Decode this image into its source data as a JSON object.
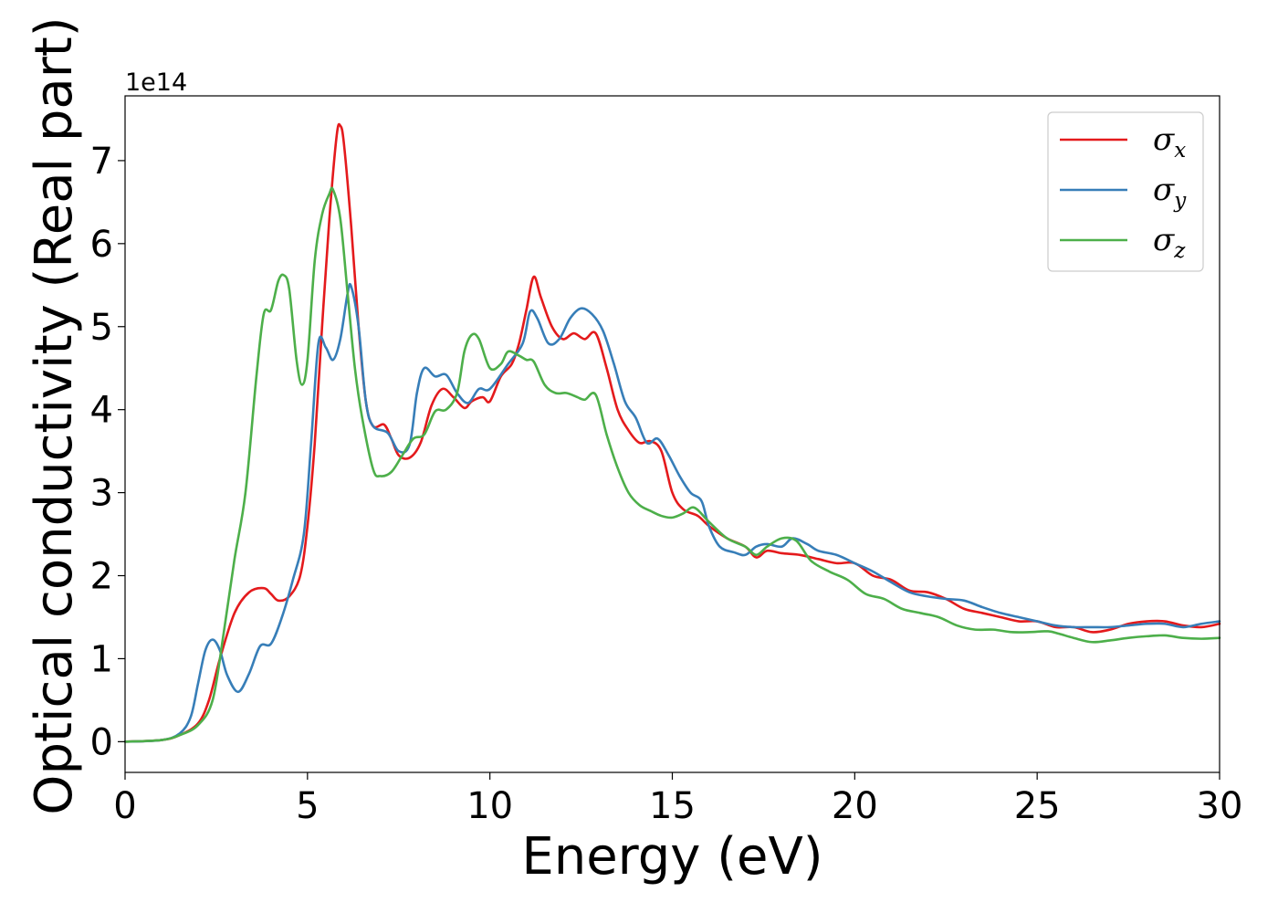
{
  "chart_data": {
    "type": "line",
    "xlabel": "Energy (eV)",
    "ylabel": "Optical conductivity (Real part)",
    "y_offset_label": "1e14",
    "y_multiplier": 100000000000000.0,
    "xlim": [
      0,
      30
    ],
    "ylim": [
      -0.37,
      7.78
    ],
    "xticks": [
      0,
      5,
      10,
      15,
      20,
      25,
      30
    ],
    "yticks": [
      0,
      1,
      2,
      3,
      4,
      5,
      6,
      7
    ],
    "grid": false,
    "legend_position": "top-right",
    "series": [
      {
        "name": "σx",
        "symbol": "σ",
        "subscript": "x",
        "color": "#e41a1c",
        "points": [
          [
            0,
            0
          ],
          [
            1,
            0.02
          ],
          [
            1.5,
            0.08
          ],
          [
            2,
            0.22
          ],
          [
            2.3,
            0.5
          ],
          [
            2.6,
            1.0
          ],
          [
            3.0,
            1.55
          ],
          [
            3.4,
            1.8
          ],
          [
            3.8,
            1.85
          ],
          [
            4.0,
            1.78
          ],
          [
            4.2,
            1.7
          ],
          [
            4.5,
            1.75
          ],
          [
            4.8,
            2.0
          ],
          [
            5.0,
            2.6
          ],
          [
            5.2,
            3.6
          ],
          [
            5.4,
            5.0
          ],
          [
            5.6,
            6.3
          ],
          [
            5.8,
            7.3
          ],
          [
            5.9,
            7.42
          ],
          [
            6.0,
            7.2
          ],
          [
            6.2,
            6.2
          ],
          [
            6.4,
            5.0
          ],
          [
            6.6,
            4.1
          ],
          [
            6.8,
            3.8
          ],
          [
            7.1,
            3.82
          ],
          [
            7.3,
            3.65
          ],
          [
            7.5,
            3.45
          ],
          [
            7.8,
            3.42
          ],
          [
            8.1,
            3.6
          ],
          [
            8.4,
            4.05
          ],
          [
            8.7,
            4.25
          ],
          [
            9.0,
            4.15
          ],
          [
            9.3,
            4.02
          ],
          [
            9.5,
            4.1
          ],
          [
            9.8,
            4.15
          ],
          [
            10.0,
            4.1
          ],
          [
            10.3,
            4.4
          ],
          [
            10.6,
            4.55
          ],
          [
            10.8,
            4.8
          ],
          [
            11.0,
            5.2
          ],
          [
            11.2,
            5.6
          ],
          [
            11.4,
            5.35
          ],
          [
            11.7,
            5.0
          ],
          [
            12.0,
            4.85
          ],
          [
            12.3,
            4.92
          ],
          [
            12.6,
            4.85
          ],
          [
            12.9,
            4.92
          ],
          [
            13.2,
            4.5
          ],
          [
            13.5,
            4.0
          ],
          [
            13.8,
            3.75
          ],
          [
            14.1,
            3.6
          ],
          [
            14.4,
            3.62
          ],
          [
            14.7,
            3.5
          ],
          [
            15.0,
            3.0
          ],
          [
            15.3,
            2.8
          ],
          [
            15.7,
            2.72
          ],
          [
            16.0,
            2.6
          ],
          [
            16.5,
            2.45
          ],
          [
            17.0,
            2.35
          ],
          [
            17.3,
            2.22
          ],
          [
            17.6,
            2.3
          ],
          [
            18.0,
            2.27
          ],
          [
            18.5,
            2.25
          ],
          [
            19.0,
            2.2
          ],
          [
            19.5,
            2.15
          ],
          [
            20.0,
            2.15
          ],
          [
            20.5,
            2.0
          ],
          [
            21.0,
            1.95
          ],
          [
            21.5,
            1.82
          ],
          [
            22.0,
            1.8
          ],
          [
            22.5,
            1.72
          ],
          [
            23.0,
            1.6
          ],
          [
            23.5,
            1.55
          ],
          [
            24.0,
            1.5
          ],
          [
            24.5,
            1.45
          ],
          [
            25.0,
            1.45
          ],
          [
            25.5,
            1.38
          ],
          [
            26.0,
            1.38
          ],
          [
            26.5,
            1.32
          ],
          [
            27.0,
            1.35
          ],
          [
            27.5,
            1.42
          ],
          [
            28.0,
            1.45
          ],
          [
            28.5,
            1.45
          ],
          [
            29.0,
            1.4
          ],
          [
            29.5,
            1.38
          ],
          [
            30.0,
            1.42
          ]
        ]
      },
      {
        "name": "σy",
        "symbol": "σ",
        "subscript": "y",
        "color": "#377eb8",
        "points": [
          [
            0,
            0
          ],
          [
            1,
            0.02
          ],
          [
            1.5,
            0.1
          ],
          [
            1.8,
            0.3
          ],
          [
            2.0,
            0.7
          ],
          [
            2.2,
            1.1
          ],
          [
            2.4,
            1.23
          ],
          [
            2.6,
            1.1
          ],
          [
            2.8,
            0.8
          ],
          [
            3.1,
            0.6
          ],
          [
            3.4,
            0.82
          ],
          [
            3.7,
            1.15
          ],
          [
            4.0,
            1.18
          ],
          [
            4.3,
            1.5
          ],
          [
            4.6,
            1.95
          ],
          [
            4.9,
            2.5
          ],
          [
            5.1,
            3.6
          ],
          [
            5.3,
            4.8
          ],
          [
            5.5,
            4.75
          ],
          [
            5.7,
            4.6
          ],
          [
            5.9,
            4.85
          ],
          [
            6.1,
            5.4
          ],
          [
            6.2,
            5.48
          ],
          [
            6.4,
            5.0
          ],
          [
            6.6,
            4.1
          ],
          [
            6.8,
            3.8
          ],
          [
            7.2,
            3.72
          ],
          [
            7.5,
            3.5
          ],
          [
            7.8,
            3.58
          ],
          [
            8.0,
            4.2
          ],
          [
            8.2,
            4.5
          ],
          [
            8.5,
            4.4
          ],
          [
            8.8,
            4.42
          ],
          [
            9.1,
            4.2
          ],
          [
            9.4,
            4.08
          ],
          [
            9.7,
            4.25
          ],
          [
            10.0,
            4.25
          ],
          [
            10.5,
            4.55
          ],
          [
            10.9,
            4.8
          ],
          [
            11.1,
            5.18
          ],
          [
            11.3,
            5.1
          ],
          [
            11.6,
            4.8
          ],
          [
            11.9,
            4.85
          ],
          [
            12.2,
            5.1
          ],
          [
            12.5,
            5.22
          ],
          [
            12.8,
            5.15
          ],
          [
            13.1,
            4.95
          ],
          [
            13.4,
            4.55
          ],
          [
            13.7,
            4.1
          ],
          [
            14.0,
            3.9
          ],
          [
            14.3,
            3.6
          ],
          [
            14.6,
            3.65
          ],
          [
            14.9,
            3.45
          ],
          [
            15.2,
            3.2
          ],
          [
            15.5,
            3.0
          ],
          [
            15.8,
            2.9
          ],
          [
            16.0,
            2.6
          ],
          [
            16.3,
            2.35
          ],
          [
            16.7,
            2.28
          ],
          [
            17.0,
            2.25
          ],
          [
            17.3,
            2.35
          ],
          [
            17.6,
            2.38
          ],
          [
            18.0,
            2.35
          ],
          [
            18.3,
            2.45
          ],
          [
            18.7,
            2.38
          ],
          [
            19.0,
            2.3
          ],
          [
            19.5,
            2.25
          ],
          [
            20.0,
            2.15
          ],
          [
            20.5,
            2.05
          ],
          [
            21.0,
            1.92
          ],
          [
            21.5,
            1.8
          ],
          [
            22.0,
            1.75
          ],
          [
            22.5,
            1.72
          ],
          [
            23.0,
            1.7
          ],
          [
            23.5,
            1.62
          ],
          [
            24.0,
            1.55
          ],
          [
            24.5,
            1.5
          ],
          [
            25.0,
            1.45
          ],
          [
            25.5,
            1.4
          ],
          [
            26.0,
            1.38
          ],
          [
            26.5,
            1.38
          ],
          [
            27.0,
            1.38
          ],
          [
            27.5,
            1.4
          ],
          [
            28.0,
            1.42
          ],
          [
            28.5,
            1.42
          ],
          [
            29.0,
            1.38
          ],
          [
            29.5,
            1.42
          ],
          [
            30.0,
            1.45
          ]
        ]
      },
      {
        "name": "σz",
        "symbol": "σ",
        "subscript": "z",
        "color": "#4daf4a",
        "points": [
          [
            0,
            0
          ],
          [
            1,
            0.02
          ],
          [
            1.5,
            0.08
          ],
          [
            2.0,
            0.2
          ],
          [
            2.4,
            0.5
          ],
          [
            2.7,
            1.3
          ],
          [
            3.0,
            2.2
          ],
          [
            3.3,
            3.0
          ],
          [
            3.6,
            4.4
          ],
          [
            3.8,
            5.15
          ],
          [
            4.0,
            5.2
          ],
          [
            4.2,
            5.55
          ],
          [
            4.35,
            5.62
          ],
          [
            4.5,
            5.45
          ],
          [
            4.7,
            4.6
          ],
          [
            4.85,
            4.3
          ],
          [
            5.0,
            4.6
          ],
          [
            5.2,
            5.8
          ],
          [
            5.4,
            6.35
          ],
          [
            5.6,
            6.6
          ],
          [
            5.7,
            6.65
          ],
          [
            5.9,
            6.3
          ],
          [
            6.1,
            5.4
          ],
          [
            6.3,
            4.5
          ],
          [
            6.5,
            3.9
          ],
          [
            6.8,
            3.28
          ],
          [
            7.0,
            3.2
          ],
          [
            7.3,
            3.25
          ],
          [
            7.6,
            3.45
          ],
          [
            7.9,
            3.65
          ],
          [
            8.2,
            3.7
          ],
          [
            8.5,
            3.98
          ],
          [
            8.8,
            4.0
          ],
          [
            9.1,
            4.2
          ],
          [
            9.3,
            4.7
          ],
          [
            9.5,
            4.9
          ],
          [
            9.7,
            4.85
          ],
          [
            10.0,
            4.5
          ],
          [
            10.3,
            4.55
          ],
          [
            10.5,
            4.7
          ],
          [
            10.8,
            4.65
          ],
          [
            11.0,
            4.6
          ],
          [
            11.2,
            4.58
          ],
          [
            11.5,
            4.3
          ],
          [
            11.8,
            4.2
          ],
          [
            12.1,
            4.2
          ],
          [
            12.4,
            4.15
          ],
          [
            12.6,
            4.12
          ],
          [
            12.9,
            4.18
          ],
          [
            13.2,
            3.7
          ],
          [
            13.5,
            3.3
          ],
          [
            13.8,
            3.0
          ],
          [
            14.1,
            2.85
          ],
          [
            14.4,
            2.78
          ],
          [
            14.7,
            2.72
          ],
          [
            15.0,
            2.7
          ],
          [
            15.3,
            2.75
          ],
          [
            15.6,
            2.82
          ],
          [
            16.0,
            2.65
          ],
          [
            16.5,
            2.45
          ],
          [
            17.0,
            2.35
          ],
          [
            17.3,
            2.25
          ],
          [
            17.6,
            2.35
          ],
          [
            18.0,
            2.45
          ],
          [
            18.4,
            2.42
          ],
          [
            18.8,
            2.18
          ],
          [
            19.3,
            2.05
          ],
          [
            19.8,
            1.95
          ],
          [
            20.3,
            1.78
          ],
          [
            20.8,
            1.72
          ],
          [
            21.3,
            1.6
          ],
          [
            21.8,
            1.55
          ],
          [
            22.3,
            1.5
          ],
          [
            22.8,
            1.4
          ],
          [
            23.3,
            1.35
          ],
          [
            23.8,
            1.35
          ],
          [
            24.3,
            1.32
          ],
          [
            24.8,
            1.32
          ],
          [
            25.3,
            1.33
          ],
          [
            25.6,
            1.3
          ],
          [
            26.0,
            1.25
          ],
          [
            26.5,
            1.2
          ],
          [
            27.0,
            1.22
          ],
          [
            27.5,
            1.25
          ],
          [
            28.0,
            1.27
          ],
          [
            28.5,
            1.28
          ],
          [
            29.0,
            1.25
          ],
          [
            29.5,
            1.24
          ],
          [
            30.0,
            1.25
          ]
        ]
      }
    ]
  }
}
